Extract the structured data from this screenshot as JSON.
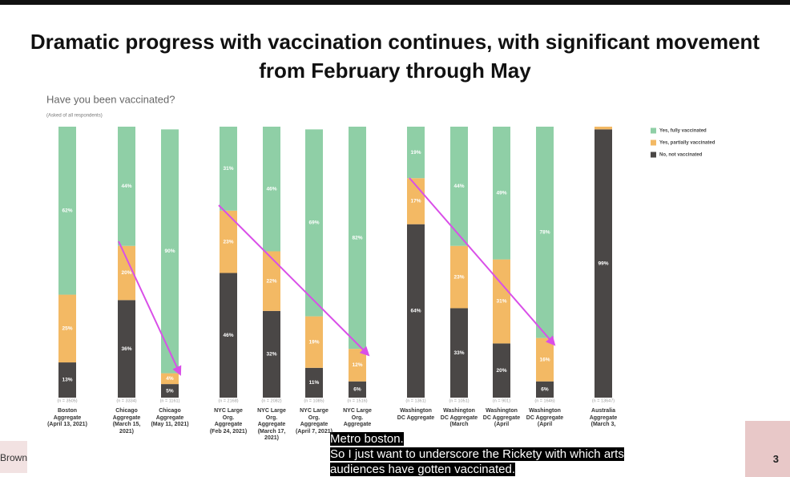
{
  "chart_data": {
    "type": "stacked-bar",
    "title": "Dramatic progress with vaccination continues, with significant movement from February through May",
    "subtitle": "Have you been vaccinated?",
    "note": "(Asked of all respondents)",
    "categories": [
      "Boston Aggregate (April 13, 2021)",
      "Chicago Aggregate (March 15, 2021)",
      "Chicago Aggregate (May 11, 2021)",
      "NYC Large Org. Aggregate (Feb 24, 2021)",
      "NYC Large Org. Aggregate (March 17, 2021)",
      "NYC Large Org. Aggregate (April 7, 2021)",
      "NYC Large Org. Aggregate",
      "Washington DC Aggregate",
      "Washington DC Aggregate (March",
      "Washington DC Aggregate (April",
      "Washington DC Aggregate (April",
      "Australia Aggregate (March 3,"
    ],
    "sample_sizes": [
      "(n = 3505)",
      "(n = 3334)",
      "(n = 1161)",
      "(n = 2168)",
      "(n = 2082)",
      "(n = 1085)",
      "(n = 1516)",
      "(n = 1361)",
      "(n = 1051)",
      "(n = 901)",
      "(n = 1646)",
      "(n = 13647)"
    ],
    "series": [
      {
        "name": "Yes, fully vaccinated",
        "color": "#8fcfa6",
        "values": [
          62,
          44,
          90,
          31,
          46,
          69,
          82,
          19,
          44,
          49,
          78,
          0
        ],
        "value_labels": [
          "62%",
          "44%",
          "90%",
          "31%",
          "46%",
          "69%",
          "82%",
          "19%",
          "44%",
          "49%",
          "78%",
          null
        ]
      },
      {
        "name": "Yes, partially vaccinated",
        "color": "#f3b964",
        "values": [
          25,
          20,
          4,
          23,
          22,
          19,
          12,
          17,
          23,
          31,
          16,
          1
        ],
        "value_labels": [
          "25%",
          "20%",
          "4%",
          "23%",
          "22%",
          "19%",
          "12%",
          "17%",
          "23%",
          "31%",
          "16%",
          null
        ]
      },
      {
        "name": "No, not vaccinated",
        "color": "#4a4746",
        "values": [
          13,
          36,
          5,
          46,
          32,
          11,
          6,
          64,
          33,
          20,
          6,
          99
        ],
        "value_labels": [
          "13%",
          "36%",
          "5%",
          "46%",
          "32%",
          "11%",
          "6%",
          "64%",
          "33%",
          "20%",
          "6%",
          "99%"
        ]
      }
    ],
    "ylim": [
      0,
      100
    ]
  },
  "captions": [
    "Metro boston.",
    "So I just want to underscore the Rickety with which arts audiences have gotten vaccinated."
  ],
  "page_number": "3",
  "side_label": "Brown"
}
